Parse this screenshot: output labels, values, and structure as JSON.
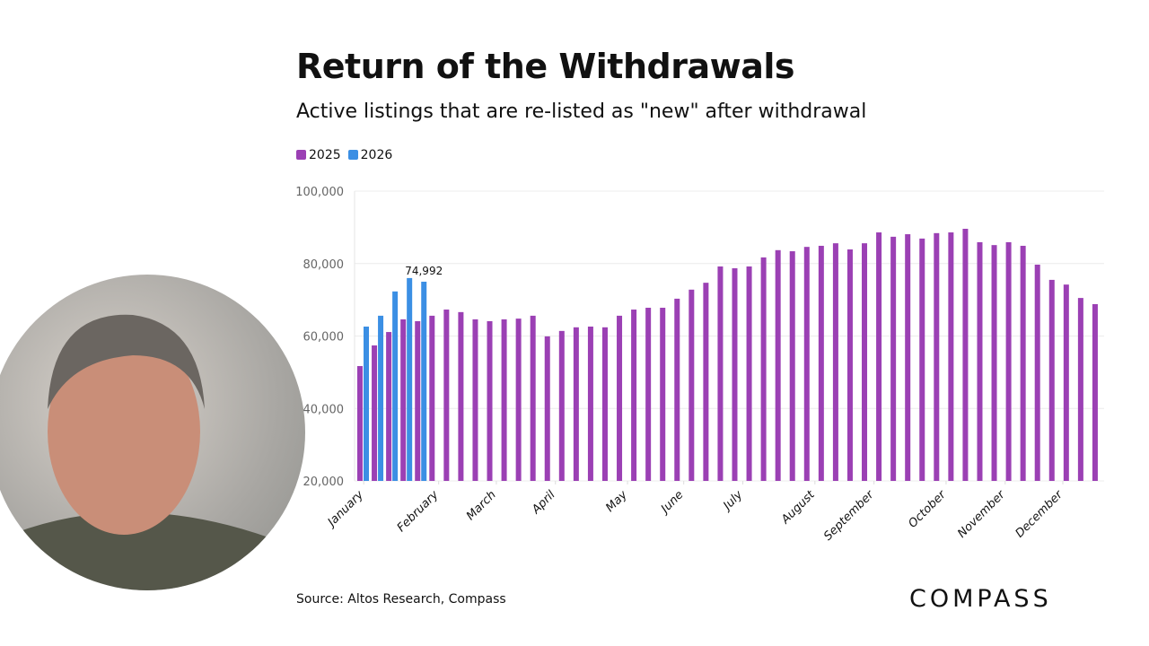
{
  "header": {
    "title": "Return of the Withdrawals",
    "subtitle": "Active listings that are re-listed as \"new\" after withdrawal"
  },
  "footer": {
    "source": "Source: Altos Research, Compass",
    "logo": "COMPASS"
  },
  "colors": {
    "2025": "#9b40b4",
    "2026": "#3b8fe4"
  },
  "chart_data": {
    "type": "bar",
    "title": "Return of the Withdrawals",
    "subtitle": "Active listings that are re-listed as \"new\" after withdrawal",
    "legend": [
      "2025",
      "2026"
    ],
    "legend_position": "top-left",
    "ylim": [
      20000,
      100000
    ],
    "yticks": [
      "20,000",
      "40,000",
      "60,000",
      "80,000",
      "100,000"
    ],
    "ytick_values": [
      20000,
      40000,
      60000,
      80000,
      100000
    ],
    "grid": true,
    "xtick_labels": [
      "January",
      "February",
      "March",
      "April",
      "May",
      "June",
      "July",
      "August",
      "September",
      "October",
      "November",
      "December"
    ],
    "series": [
      {
        "name": "2025",
        "values": [
          51700,
          57400,
          61100,
          64600,
          64100,
          65600,
          67300,
          66600,
          64600,
          64100,
          64600,
          64800,
          65600,
          59900,
          61400,
          62400,
          62600,
          62400,
          65600,
          67300,
          67800,
          67800,
          70300,
          72800,
          74700,
          79200,
          78700,
          79200,
          81700,
          83700,
          83400,
          84600,
          84900,
          85600,
          83900,
          85600,
          88600,
          87400,
          88100,
          86900,
          88400,
          88600,
          89600,
          85900,
          85100,
          85900,
          84900,
          79700,
          75500,
          74200,
          70500,
          68800
        ]
      },
      {
        "name": "2026",
        "values": [
          62600,
          65600,
          72300,
          76000,
          74992
        ]
      }
    ],
    "data_labels": [
      {
        "series": "2026",
        "index": 4,
        "text": "74,992"
      }
    ]
  }
}
